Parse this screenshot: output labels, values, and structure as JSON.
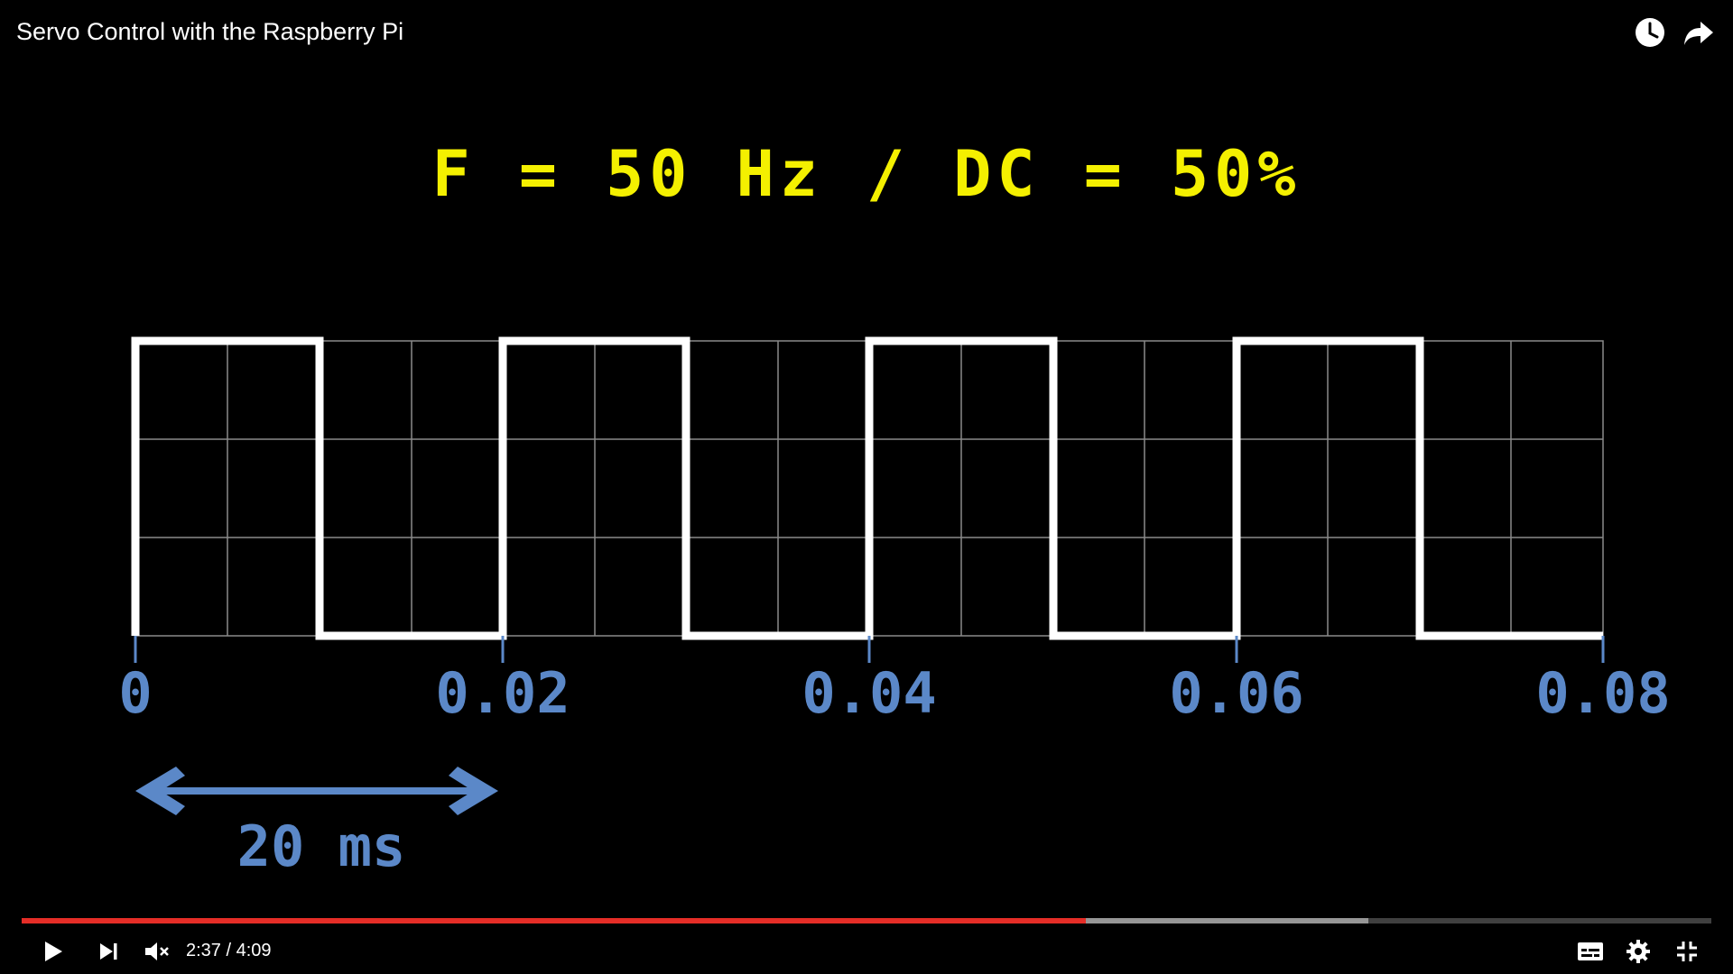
{
  "video": {
    "title": "Servo Control with the Raspberry Pi",
    "formula": "F = 50 Hz / DC = 50%",
    "axis_ticks": [
      "0",
      "0.02",
      "0.04",
      "0.06",
      "0.08"
    ],
    "period_label": "20 ms",
    "signal": {
      "frequency_hz": 50,
      "duty_cycle_percent": 50,
      "x_range_s": [
        0,
        0.08
      ]
    }
  },
  "player": {
    "current_time": "2:37",
    "separator": " / ",
    "duration": "4:09",
    "played_fraction": 0.63,
    "buffered_fraction": 0.797,
    "accent_color": "#e52d27"
  },
  "icons": {
    "watch_later": "clock-icon",
    "share": "share-icon",
    "play": "play-icon",
    "next": "next-icon",
    "mute": "volume-muted-icon",
    "subtitles": "subtitles-icon",
    "settings": "gear-icon",
    "fullscreen_exit": "exit-fullscreen-icon"
  }
}
